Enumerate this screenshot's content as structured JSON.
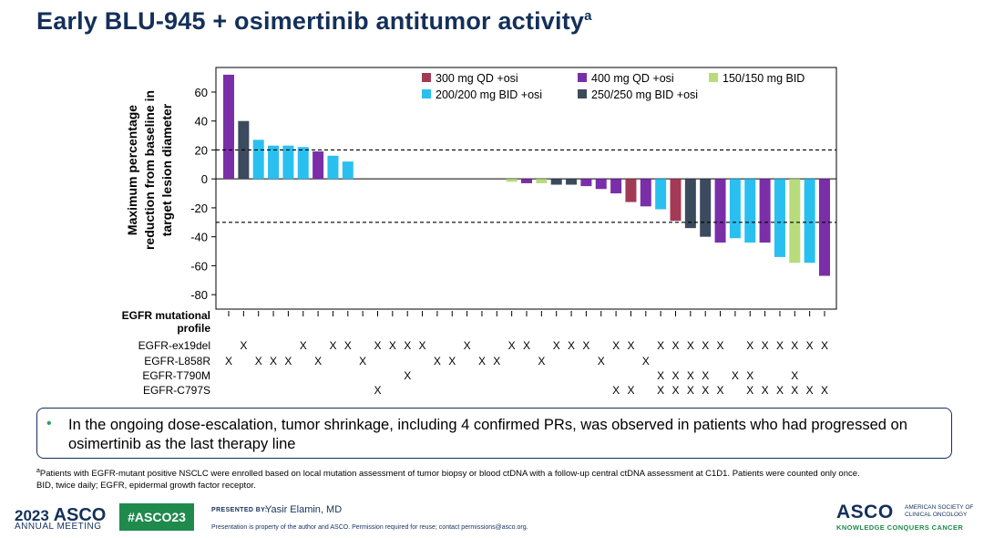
{
  "page": {
    "title": "Early BLU-945 + osimertinib antitumor activity",
    "title_sup": "a"
  },
  "chart_data": {
    "type": "bar",
    "ylabel": "Maximum percentage reduction from baseline in target lesion diameter",
    "ylabel_lines": [
      "Maximum percentage",
      "reduction from baseline in",
      "target lesion diameter"
    ],
    "ylim": [
      -90,
      77
    ],
    "yticks": [
      60,
      40,
      20,
      0,
      -20,
      -40,
      -60,
      -80
    ],
    "reference_lines": [
      20,
      -30
    ],
    "legend": [
      {
        "label": "300 mg QD +osi",
        "color": "#a33a55"
      },
      {
        "label": "400 mg QD +osi",
        "color": "#7a2fa8"
      },
      {
        "label": "150/150 mg BID",
        "color": "#b8dc7c"
      },
      {
        "label": "200/200 mg BID +osi",
        "color": "#29c0f0"
      },
      {
        "label": "250/250 mg BID +osi",
        "color": "#3c4a5e"
      }
    ],
    "bars": [
      {
        "value": 72,
        "group": 1
      },
      {
        "value": 40,
        "group": 4
      },
      {
        "value": 27,
        "group": 3
      },
      {
        "value": 23,
        "group": 3
      },
      {
        "value": 23,
        "group": 3
      },
      {
        "value": 22,
        "group": 3
      },
      {
        "value": 19,
        "group": 1
      },
      {
        "value": 16,
        "group": 3
      },
      {
        "value": 12,
        "group": 3
      },
      {
        "value": 0,
        "group": 3
      },
      {
        "value": 0,
        "group": 3
      },
      {
        "value": 0,
        "group": 3
      },
      {
        "value": 0,
        "group": 3
      },
      {
        "value": 0,
        "group": 3
      },
      {
        "value": 0,
        "group": 3
      },
      {
        "value": 0,
        "group": 3
      },
      {
        "value": 0,
        "group": 3
      },
      {
        "value": 0,
        "group": 3
      },
      {
        "value": 0,
        "group": 3
      },
      {
        "value": -2,
        "group": 2
      },
      {
        "value": -3,
        "group": 1
      },
      {
        "value": -3,
        "group": 2
      },
      {
        "value": -4,
        "group": 4
      },
      {
        "value": -4,
        "group": 4
      },
      {
        "value": -5,
        "group": 1
      },
      {
        "value": -7,
        "group": 1
      },
      {
        "value": -10,
        "group": 1
      },
      {
        "value": -16,
        "group": 0
      },
      {
        "value": -19,
        "group": 1
      },
      {
        "value": -21,
        "group": 3
      },
      {
        "value": -29,
        "group": 0
      },
      {
        "value": -34,
        "group": 4
      },
      {
        "value": -40,
        "group": 4
      },
      {
        "value": -44,
        "group": 1
      },
      {
        "value": -41,
        "group": 3
      },
      {
        "value": -44,
        "group": 3
      },
      {
        "value": -44,
        "group": 1
      },
      {
        "value": -54,
        "group": 3
      },
      {
        "value": -58,
        "group": 2
      },
      {
        "value": -58,
        "group": 3
      },
      {
        "value": -67,
        "group": 1
      }
    ],
    "profile_title": [
      "EGFR mutational",
      "profile"
    ],
    "profile_rows": [
      {
        "label": "EGFR-ex19del",
        "marks": [
          1,
          5,
          7,
          8,
          10,
          11,
          12,
          13,
          16,
          19,
          20,
          22,
          23,
          24,
          26,
          27,
          29,
          30,
          31,
          32,
          33,
          35,
          36,
          37,
          38,
          39,
          40
        ]
      },
      {
        "label": "EGFR-L858R",
        "marks": [
          0,
          2,
          3,
          4,
          6,
          9,
          14,
          15,
          17,
          18,
          21,
          25,
          28
        ]
      },
      {
        "label": "EGFR-T790M",
        "marks": [
          12,
          29,
          30,
          31,
          32,
          34,
          35,
          38
        ]
      },
      {
        "label": "EGFR-C797S",
        "marks": [
          10,
          26,
          27,
          29,
          30,
          31,
          32,
          33,
          35,
          36,
          37,
          38,
          39,
          40
        ]
      }
    ],
    "mark_symbol": "X"
  },
  "callout": {
    "bullet": "•",
    "text": "In the ongoing dose-escalation, tumor shrinkage, including 4 confirmed PRs, was observed in patients who had progressed on osimertinib as the last therapy line"
  },
  "footnote": {
    "sup": "a",
    "line1": "Patients with EGFR-mutant positive NSCLC were enrolled based on local mutation assessment of tumor biopsy or blood ctDNA with a follow-up central ctDNA assessment at C1D1. Patients were counted only once.",
    "line2": "BID, twice daily; EGFR, epidermal growth factor receptor."
  },
  "footer": {
    "year": "2023",
    "asco": "ASCO",
    "meeting": "ANNUAL MEETING",
    "hashtag": "#ASCO23",
    "presented_by": "PRESENTED BY:",
    "presenter": "Yasir Elamin, MD",
    "permission": "Presentation is property of the author and ASCO. Permission required for reuse; contact permissions@asco.org.",
    "logo": "ASCO",
    "org": "AMERICAN SOCIETY OF CLINICAL ONCOLOGY",
    "tagline": "KNOWLEDGE CONQUERS CANCER"
  }
}
